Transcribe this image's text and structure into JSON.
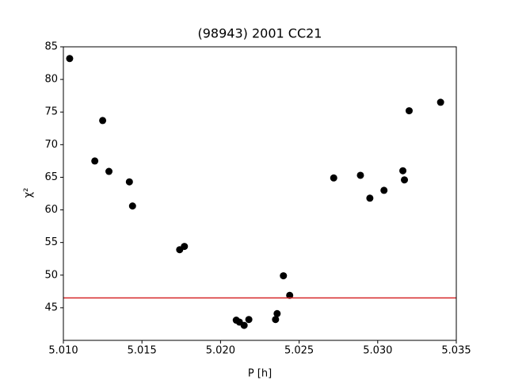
{
  "chart_data": {
    "type": "scatter",
    "title": "(98943) 2001 CC21",
    "xlabel": "P [h]",
    "ylabel": "χ²",
    "x": [
      5.0104,
      5.012,
      5.0125,
      5.0129,
      5.0142,
      5.0144,
      5.0174,
      5.0177,
      5.021,
      5.0212,
      5.0215,
      5.0218,
      5.0235,
      5.0236,
      5.024,
      5.0244,
      5.0272,
      5.0289,
      5.0295,
      5.0304,
      5.0316,
      5.0317,
      5.032,
      5.034
    ],
    "values": [
      83.2,
      67.5,
      73.7,
      65.9,
      64.3,
      60.6,
      53.9,
      54.4,
      43.1,
      42.8,
      42.3,
      43.2,
      43.2,
      44.1,
      49.9,
      46.9,
      64.9,
      65.3,
      61.8,
      63.0,
      66.0,
      64.6,
      75.2,
      76.5
    ],
    "color": "#000000",
    "hline": {
      "value": 46.5,
      "color": "#d62728"
    },
    "xlim": [
      5.01,
      5.035
    ],
    "xticks": [
      {
        "value": 5.01,
        "label": "5.010"
      },
      {
        "value": 5.015,
        "label": "5.015"
      },
      {
        "value": 5.02,
        "label": "5.020"
      },
      {
        "value": 5.025,
        "label": "5.025"
      },
      {
        "value": 5.03,
        "label": "5.030"
      },
      {
        "value": 5.035,
        "label": "5.035"
      }
    ],
    "ylim": [
      40,
      85
    ],
    "yticks": [
      45,
      50,
      55,
      60,
      65,
      70,
      75,
      80,
      85
    ]
  }
}
